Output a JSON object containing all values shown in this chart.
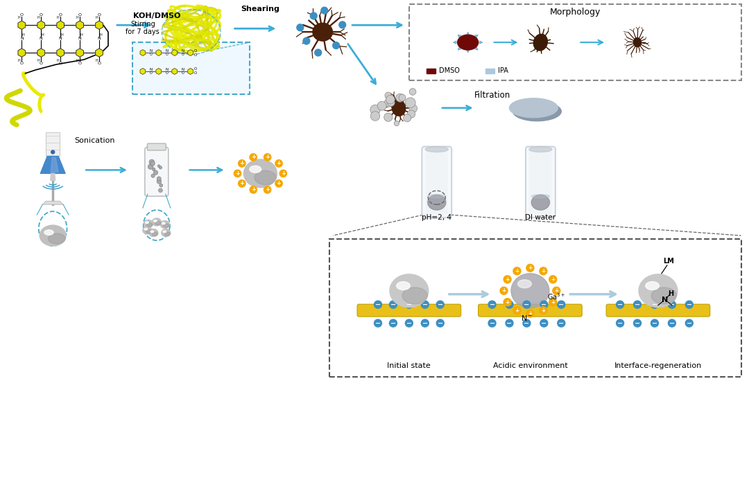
{
  "bg_color": "#ffffff",
  "fig_width": 10.8,
  "fig_height": 6.9,
  "labels": {
    "koh_dmso": "KOH/DMSO",
    "shearing": "Shearing",
    "stirring": "Stirring\nfor 7 days",
    "sonication": "Sonication",
    "morphology": "Morphology",
    "dmso": "DMSO",
    "ipa": "IPA",
    "filtration": "Filtration",
    "ph": "pH=2, 4",
    "di_water": "DI water",
    "initial_state": "Initial state",
    "acidic": "Acidic environment",
    "interface": "Interface-regeneration",
    "lm": "LM",
    "h": "H",
    "n_label": "N"
  },
  "arrow_color": "#3badd6",
  "arrow_color2": "#aaccee",
  "neuron_color": "#4a2008",
  "dmso_blob_color": "#6b0a0a",
  "yellow_rod": "#e8c020",
  "minus_color": "#3d8fc2",
  "plus_color": "#f5a800",
  "box_dashed_color": "#555555",
  "cyan_dashed": "#44aacc"
}
